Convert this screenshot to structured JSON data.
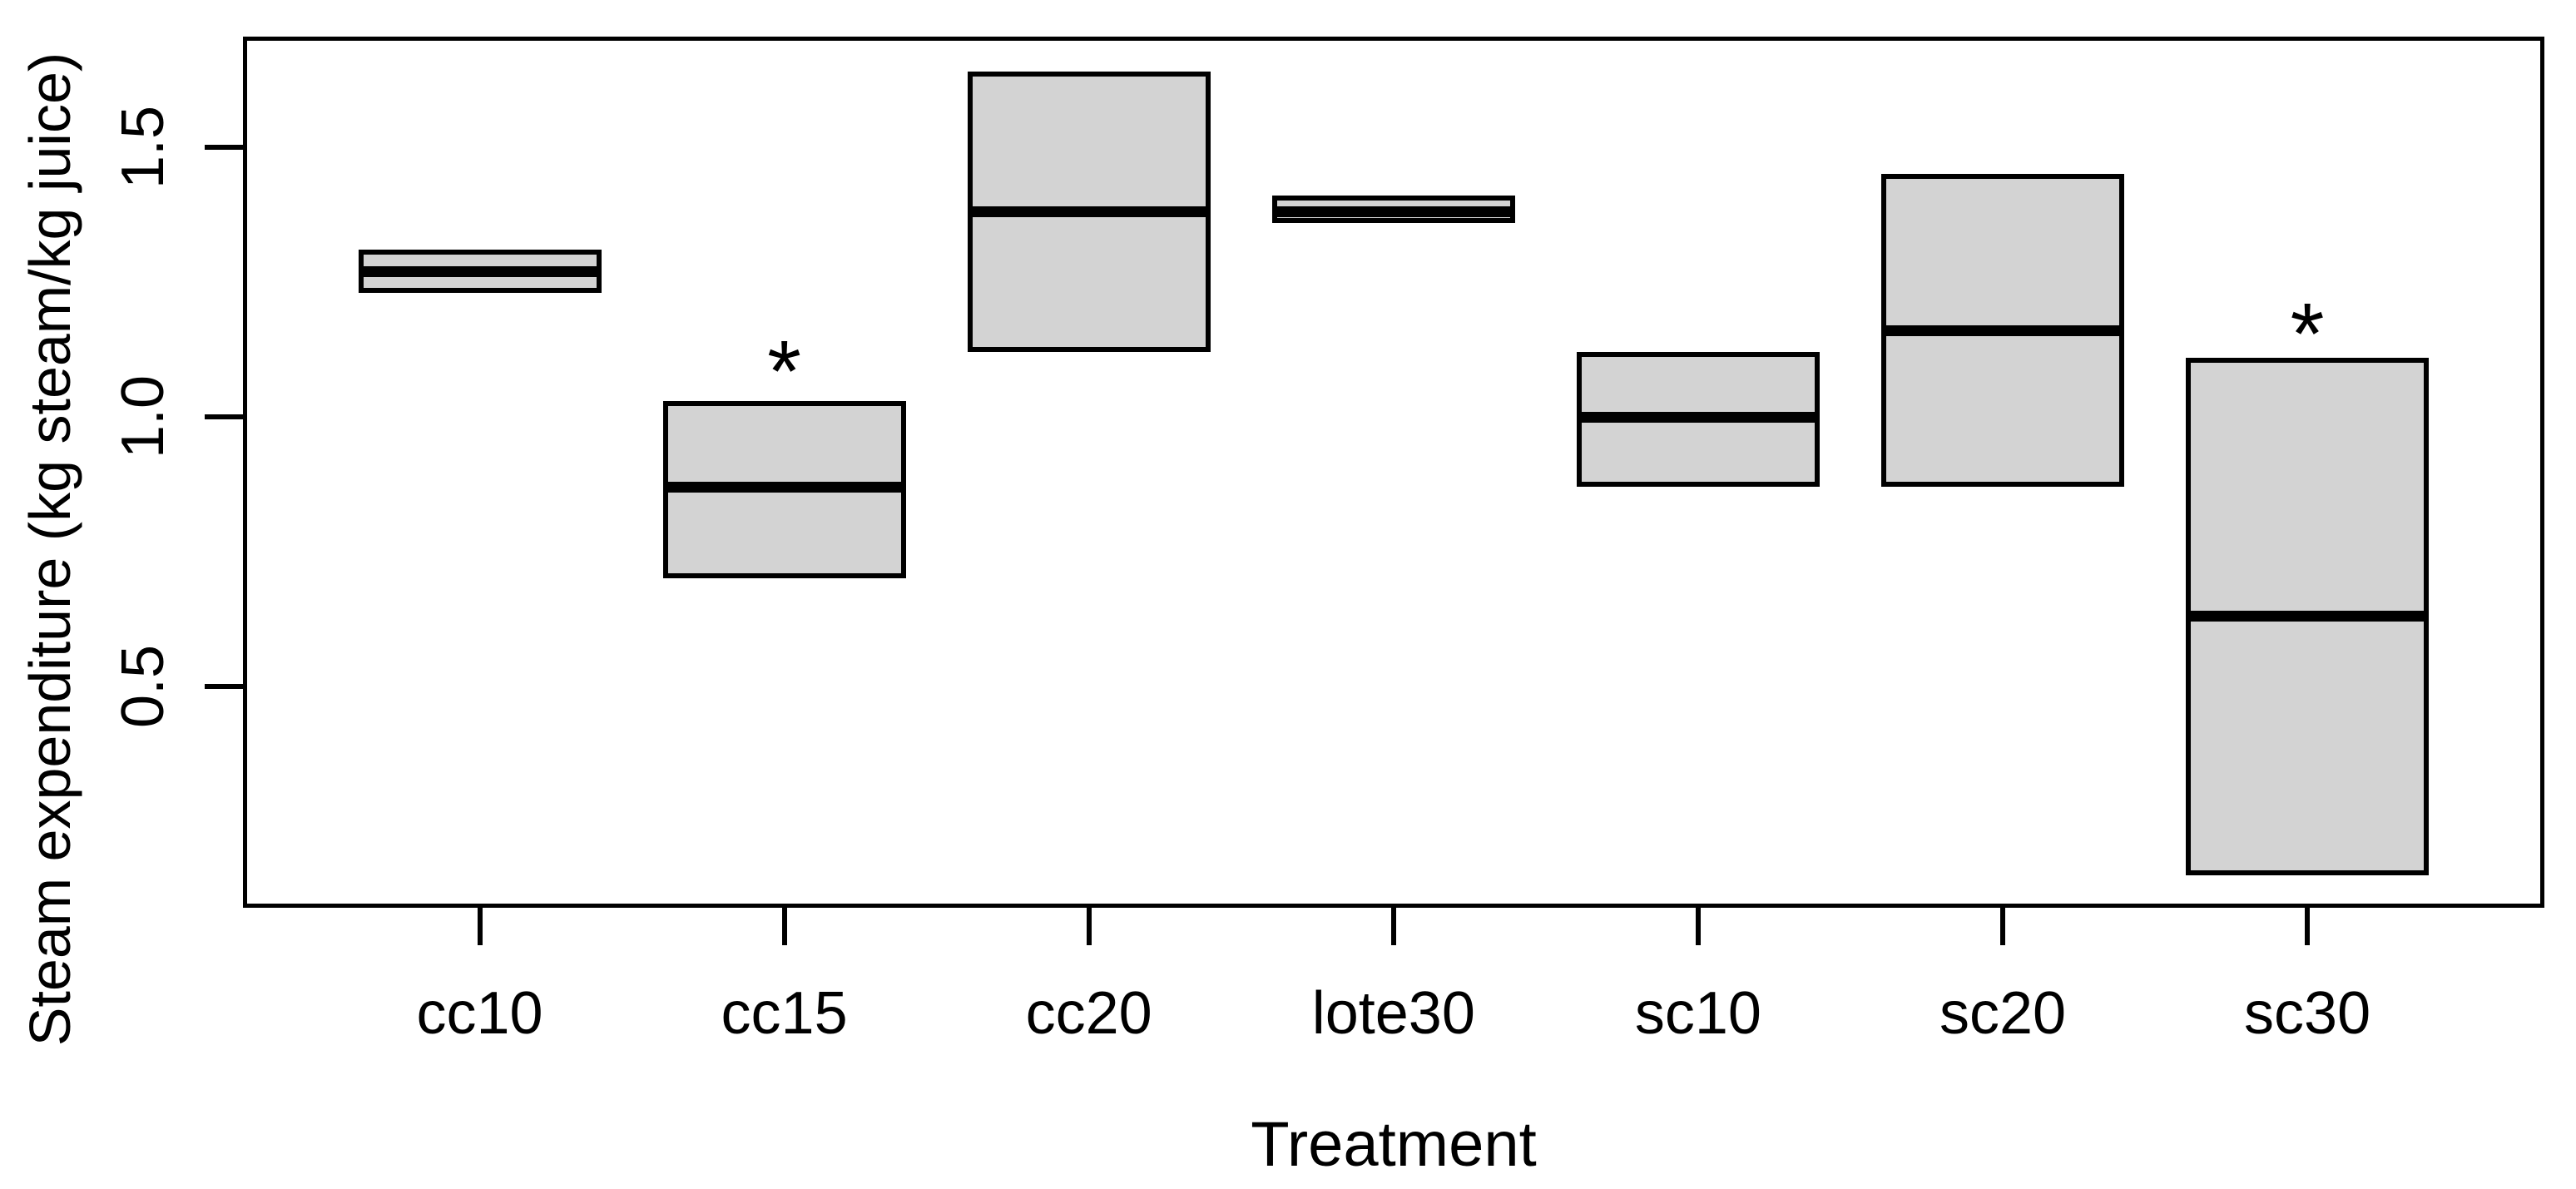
{
  "chart_data": {
    "type": "boxplot",
    "title": "",
    "xlabel": "Treatment",
    "ylabel": "Steam expenditure (kg steam/kg juice)",
    "categories": [
      "cc10",
      "cc15",
      "cc20",
      "lote30",
      "sc10",
      "sc20",
      "sc30"
    ],
    "y_ticks": [
      {
        "value": 0.5,
        "label": "0.5"
      },
      {
        "value": 1.0,
        "label": "1.0"
      },
      {
        "value": 1.5,
        "label": "1.5"
      }
    ],
    "ylim": [
      0.09,
      1.71
    ],
    "grid": false,
    "legend": false,
    "boxes": [
      {
        "category": "cc10",
        "q1": 1.23,
        "median": 1.27,
        "q3": 1.31,
        "annotation": "",
        "annotation_y": null
      },
      {
        "category": "cc15",
        "q1": 0.7,
        "median": 0.87,
        "q3": 1.03,
        "annotation": "*",
        "annotation_y": 1.12
      },
      {
        "category": "cc20",
        "q1": 1.12,
        "median": 1.38,
        "q3": 1.64,
        "annotation": "",
        "annotation_y": null
      },
      {
        "category": "lote30",
        "q1": 1.36,
        "median": 1.38,
        "q3": 1.41,
        "annotation": "",
        "annotation_y": null
      },
      {
        "category": "sc10",
        "q1": 0.87,
        "median": 1.0,
        "q3": 1.12,
        "annotation": "",
        "annotation_y": null
      },
      {
        "category": "sc20",
        "q1": 0.87,
        "median": 1.16,
        "q3": 1.45,
        "annotation": "",
        "annotation_y": null
      },
      {
        "category": "sc30",
        "q1": 0.15,
        "median": 0.63,
        "q3": 1.11,
        "annotation": "*",
        "annotation_y": 1.19
      }
    ],
    "colors": {
      "box_fill": "#d3d3d3",
      "box_border": "#000000",
      "median_line": "#000000",
      "axis": "#000000",
      "background": "#ffffff"
    }
  }
}
